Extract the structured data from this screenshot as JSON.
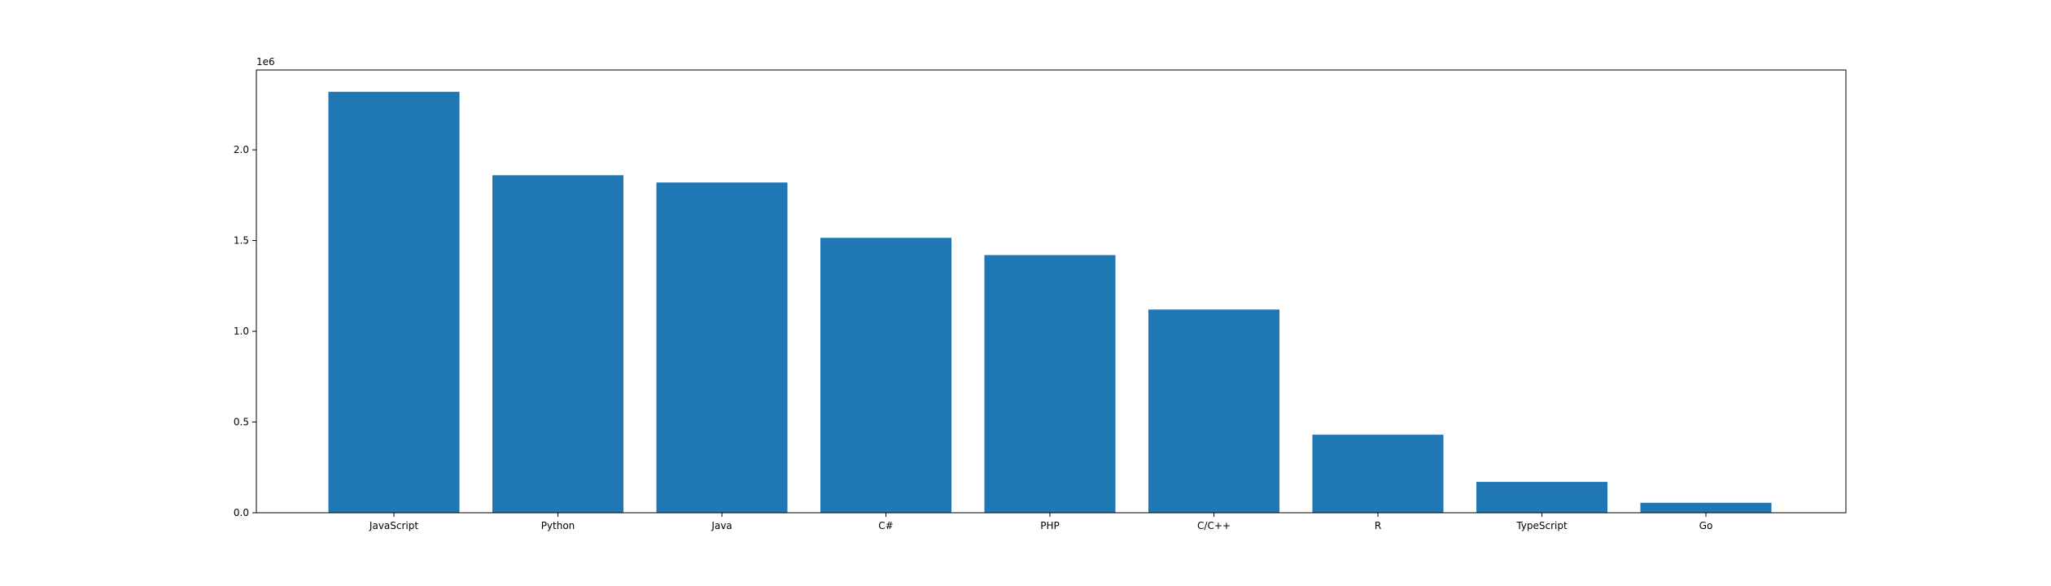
{
  "chart_data": {
    "type": "bar",
    "title": "",
    "xlabel": "",
    "ylabel": "",
    "y_offset_label": "1e6",
    "categories": [
      "JavaScript",
      "Python",
      "Java",
      "C#",
      "PHP",
      "C/C++",
      "R",
      "TypeScript",
      "Go"
    ],
    "values": [
      2320000,
      1860000,
      1820000,
      1515000,
      1420000,
      1120000,
      430000,
      170000,
      55000
    ],
    "ylim": [
      0,
      2440000
    ],
    "yticks": [
      0,
      500000,
      1000000,
      1500000,
      2000000
    ],
    "ytick_labels": [
      "0.0",
      "0.5",
      "1.0",
      "1.5",
      "2.0"
    ],
    "grid": false,
    "bar_color": "#1f77b4"
  }
}
